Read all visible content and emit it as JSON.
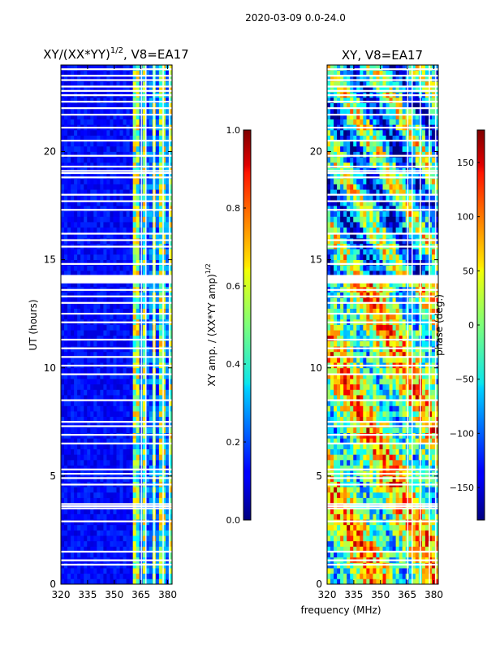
{
  "figure": {
    "suptitle": "2020-03-09 0.0-24.0"
  },
  "chart_data": [
    {
      "type": "heatmap",
      "title_main": "XY/(XX*YY)",
      "title_exponent": "1/2",
      "title_suffix": ", V8=EA17",
      "xlabel": "",
      "ylabel": "UT (hours)",
      "xlim": [
        320,
        382.5
      ],
      "ylim": [
        0,
        24
      ],
      "xticks": [
        320,
        335,
        350,
        365,
        380
      ],
      "yticks": [
        0,
        5,
        10,
        15,
        20
      ],
      "description_values": "normalized amplitude, mostly near 0.05-0.15 below 360 MHz, 0.3-0.8 in striped band 360-382 MHz",
      "colorbar": {
        "label_main": "XY amp. / (XX*YY amp)",
        "label_exponent": "1/2",
        "range": [
          0.0,
          1.0
        ],
        "ticks": [
          "0.0",
          "0.2",
          "0.4",
          "0.6",
          "0.8",
          "1.0"
        ],
        "tick_values": [
          0.0,
          0.2,
          0.4,
          0.6,
          0.8,
          1.0
        ],
        "colormap": "jet"
      }
    },
    {
      "type": "heatmap",
      "title": "XY, V8=EA17",
      "xlabel": "frequency (MHz)",
      "ylabel": "",
      "xlim": [
        320,
        382.5
      ],
      "ylim": [
        0,
        24
      ],
      "xticks": [
        320,
        335,
        350,
        365,
        380
      ],
      "yticks": [
        0,
        5,
        10,
        15,
        20
      ],
      "colorbar": {
        "label": "phase (deg.)",
        "range": [
          -180,
          180
        ],
        "ticks": [
          "150",
          "100",
          "50",
          "0",
          "−50",
          "−100",
          "−150"
        ],
        "tick_values": [
          150,
          100,
          50,
          0,
          -50,
          -100,
          -150
        ],
        "colormap": "jet"
      }
    }
  ],
  "flagged_rows_hours": [
    0.9,
    1.1,
    1.5,
    2.9,
    3.5,
    3.6,
    3.7,
    4.6,
    4.9,
    5.1,
    5.3,
    6.5,
    6.9,
    7.3,
    7.5,
    8.5,
    9.7,
    10.1,
    10.5,
    10.9,
    11.3,
    12.1,
    12.5,
    13.0,
    13.3,
    13.6,
    14.0,
    14.1,
    14.2,
    14.8,
    15.6,
    15.9,
    16.2,
    17.3,
    17.7,
    18.0,
    18.8,
    19.0,
    19.1,
    19.3,
    19.8,
    20.5,
    21.1,
    21.7,
    22.0,
    22.3,
    22.6,
    22.8,
    23.0,
    23.3,
    23.5,
    23.8
  ],
  "flagged_cols_mhz": [
    365.3,
    367.8,
    372.4,
    377.5,
    381.0
  ]
}
